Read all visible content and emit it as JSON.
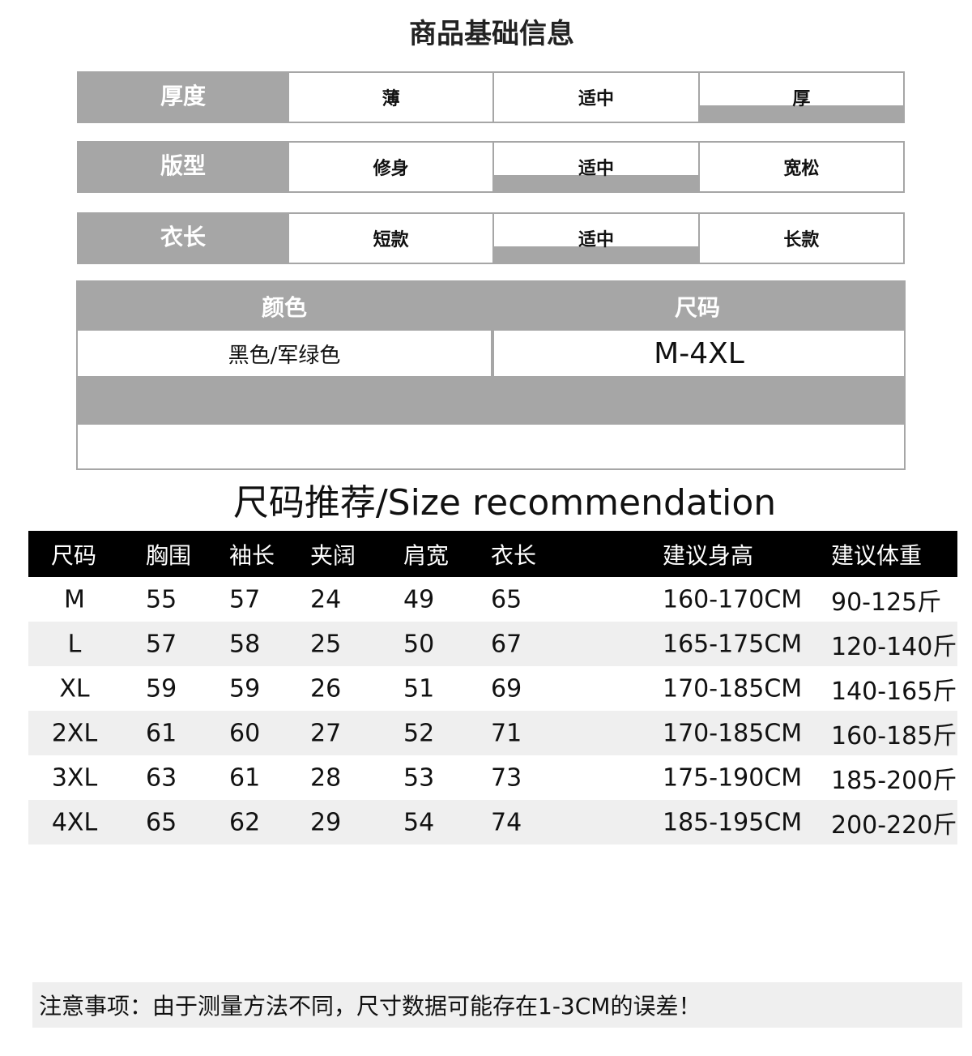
{
  "title": "商品基础信息",
  "attributes": [
    {
      "label": "厚度",
      "options": [
        "薄",
        "适中",
        "厚"
      ],
      "selected": 2
    },
    {
      "label": "版型",
      "options": [
        "修身",
        "适中",
        "宽松"
      ],
      "selected": 1
    },
    {
      "label": "衣长",
      "options": [
        "短款",
        "适中",
        "长款"
      ],
      "selected": 1
    }
  ],
  "color_size": {
    "color_label": "颜色",
    "size_label": "尺码",
    "color_value": "黑色/军绿色",
    "size_value": "M-4XL"
  },
  "size_heading": "尺码推荐/Size recommendation",
  "size_table": {
    "headers": [
      "尺码",
      "胸围",
      "袖长",
      "夹阔",
      "肩宽",
      "衣长",
      "建议身高",
      "建议体重"
    ],
    "rows": [
      [
        "M",
        "55",
        "57",
        "24",
        "49",
        "65",
        "160-170CM",
        "90-125斤"
      ],
      [
        "L",
        "57",
        "58",
        "25",
        "50",
        "67",
        "165-175CM",
        "120-140斤"
      ],
      [
        "XL",
        "59",
        "59",
        "26",
        "51",
        "69",
        "170-185CM",
        "140-165斤"
      ],
      [
        "2XL",
        "61",
        "60",
        "27",
        "52",
        "71",
        "170-185CM",
        "160-185斤"
      ],
      [
        "3XL",
        "63",
        "61",
        "28",
        "53",
        "73",
        "175-190CM",
        "185-200斤"
      ],
      [
        "4XL",
        "65",
        "62",
        "29",
        "54",
        "74",
        "185-195CM",
        "200-220斤"
      ]
    ]
  },
  "note": "注意事项：由于测量方法不同，尺寸数据可能存在1-3CM的误差！",
  "colors": {
    "gray": "#a6a6a6",
    "header": "#000000",
    "alt_row": "#efefef"
  }
}
